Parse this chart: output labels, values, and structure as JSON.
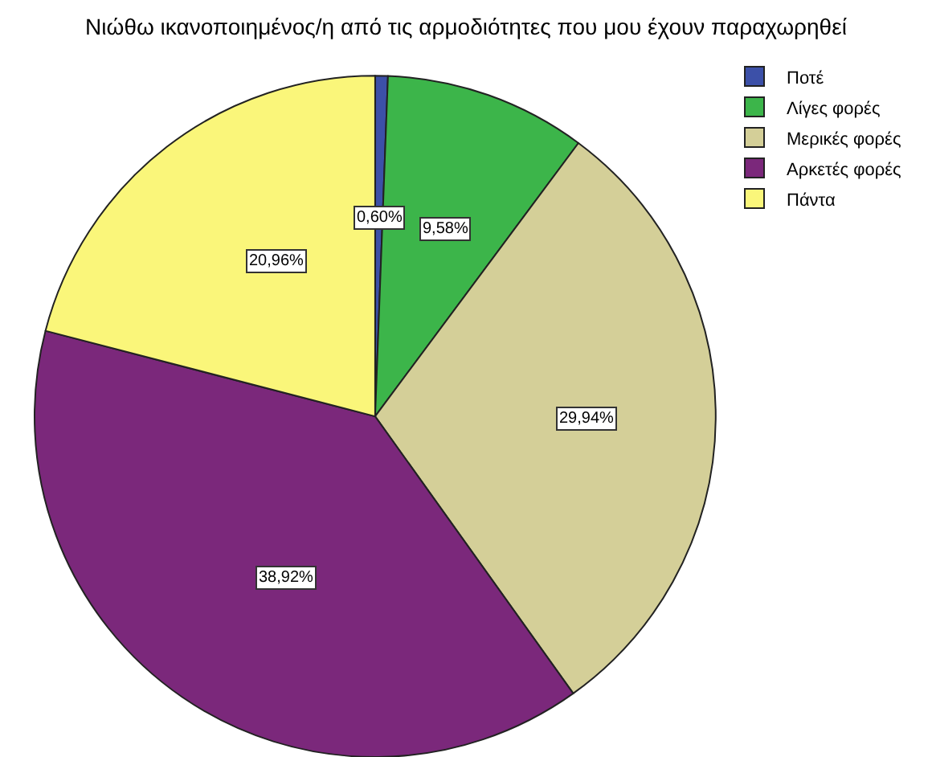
{
  "chart_data": {
    "type": "pie",
    "title": "Νιώθω ικανοποιημένος/η από τις αρμοδιότητες που μου έχουν παραχωρηθεί",
    "categories": [
      "Ποτέ",
      "Λίγες φορές",
      "Μερικές φορές",
      "Αρκετές φορές",
      "Πάντα"
    ],
    "values": [
      0.6,
      9.58,
      29.94,
      38.92,
      20.96
    ],
    "value_labels": [
      "0,60%",
      "9,58%",
      "29,94%",
      "38,92%",
      "20,96%"
    ],
    "colors": [
      "#3c50a8",
      "#3cb54a",
      "#d4cf98",
      "#7b287b",
      "#faf67a"
    ],
    "legend": "top right"
  }
}
